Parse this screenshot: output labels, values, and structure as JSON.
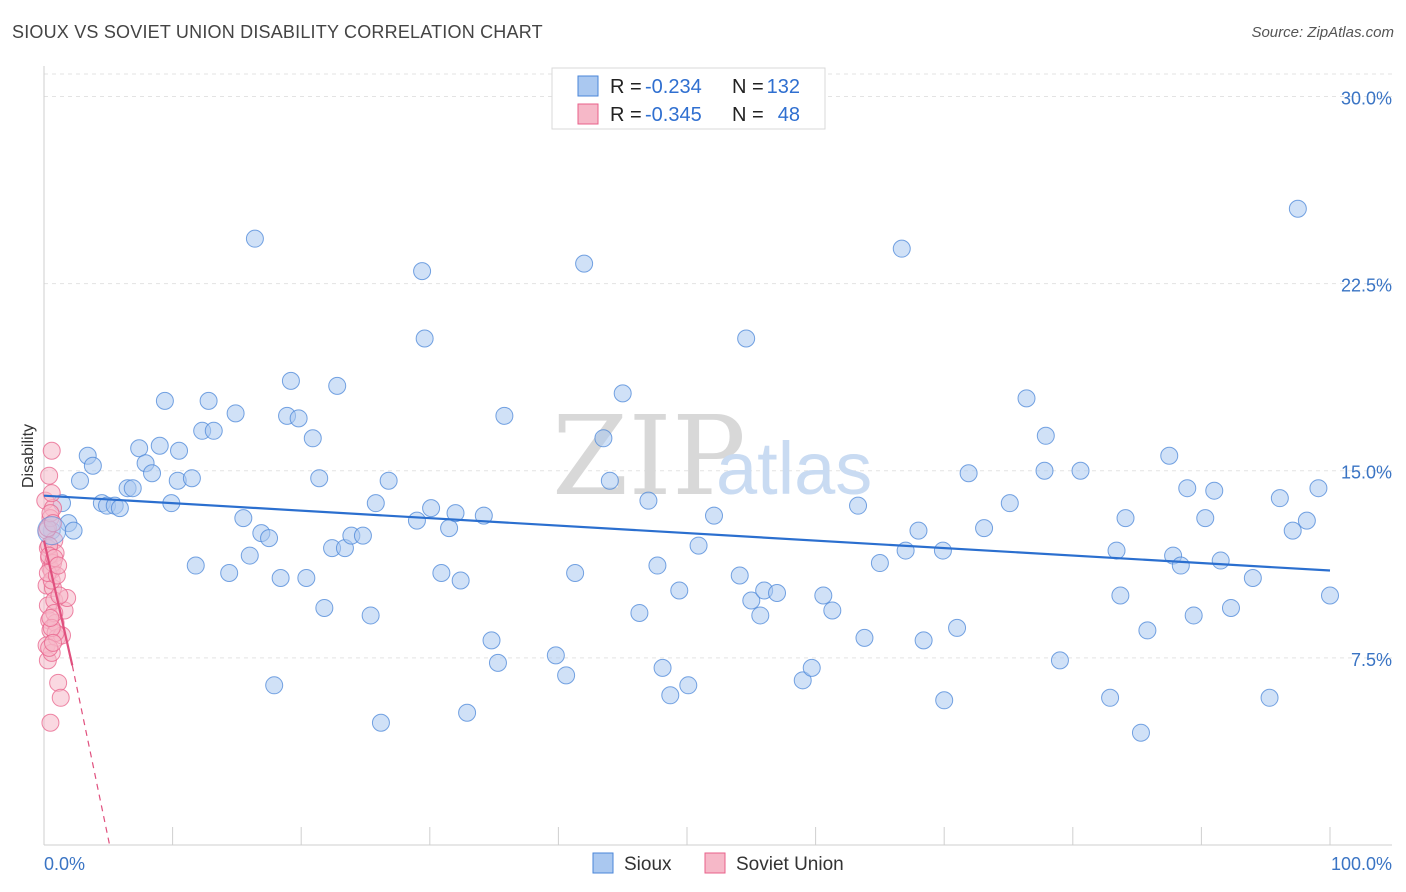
{
  "header": {
    "title": "SIOUX VS SOVIET UNION DISABILITY CORRELATION CHART",
    "source": "Source: ZipAtlas.com"
  },
  "watermark": {
    "zip": "ZIP",
    "atlas": "atlas"
  },
  "legend_top": {
    "r_label": "R =",
    "n_label": "N =",
    "rows": [
      {
        "r": "-0.234",
        "n": "132",
        "color": "#aac8f0"
      },
      {
        "r": "-0.345",
        "n": "48",
        "color": "#f6b8c8"
      }
    ]
  },
  "legend_bottom": [
    "Sioux",
    "Soviet Union"
  ],
  "chart_data": {
    "type": "scatter",
    "title": "SIOUX VS SOVIET UNION DISABILITY CORRELATION CHART",
    "xlabel": "",
    "ylabel": "Disability",
    "xlim": [
      0,
      100
    ],
    "ylim": [
      0,
      30.9
    ],
    "y_ticks": [
      7.5,
      15.0,
      22.5,
      30.0
    ],
    "y_tick_labels": [
      "7.5%",
      "15.0%",
      "22.5%",
      "30.0%"
    ],
    "x_tick_labels": [
      "0.0%",
      "100.0%"
    ],
    "grid": true,
    "legend_position": "top-center",
    "series": [
      {
        "name": "Sioux",
        "color": "#4a86d8",
        "fill": "#aac8f0",
        "trend": {
          "x": [
            0,
            100
          ],
          "y": [
            14.0,
            11.0
          ]
        },
        "points": [
          [
            0.6,
            12.6
          ],
          [
            1.4,
            13.7
          ],
          [
            1.9,
            12.9
          ],
          [
            2.3,
            12.6
          ],
          [
            2.8,
            14.6
          ],
          [
            3.4,
            15.6
          ],
          [
            3.8,
            15.2
          ],
          [
            4.5,
            13.7
          ],
          [
            4.9,
            13.6
          ],
          [
            5.5,
            13.6
          ],
          [
            5.9,
            13.5
          ],
          [
            6.5,
            14.3
          ],
          [
            6.9,
            14.3
          ],
          [
            7.4,
            15.9
          ],
          [
            7.9,
            15.3
          ],
          [
            8.4,
            14.9
          ],
          [
            9.0,
            16.0
          ],
          [
            9.4,
            17.8
          ],
          [
            9.9,
            13.7
          ],
          [
            10.4,
            14.6
          ],
          [
            10.5,
            15.8
          ],
          [
            11.5,
            14.7
          ],
          [
            11.8,
            11.2
          ],
          [
            12.3,
            16.6
          ],
          [
            12.8,
            17.8
          ],
          [
            13.2,
            16.6
          ],
          [
            14.4,
            10.9
          ],
          [
            14.9,
            17.3
          ],
          [
            15.5,
            13.1
          ],
          [
            16.0,
            11.6
          ],
          [
            16.4,
            24.3
          ],
          [
            16.9,
            12.5
          ],
          [
            17.5,
            12.3
          ],
          [
            17.9,
            6.4
          ],
          [
            18.4,
            10.7
          ],
          [
            18.9,
            17.2
          ],
          [
            19.2,
            18.6
          ],
          [
            19.8,
            17.1
          ],
          [
            20.4,
            10.7
          ],
          [
            20.9,
            16.3
          ],
          [
            21.4,
            14.7
          ],
          [
            21.8,
            9.5
          ],
          [
            22.4,
            11.9
          ],
          [
            22.8,
            18.4
          ],
          [
            23.4,
            11.9
          ],
          [
            23.9,
            12.4
          ],
          [
            24.8,
            12.4
          ],
          [
            25.4,
            9.2
          ],
          [
            25.8,
            13.7
          ],
          [
            26.2,
            4.9
          ],
          [
            26.8,
            14.6
          ],
          [
            29.0,
            13.0
          ],
          [
            29.4,
            23.0
          ],
          [
            29.6,
            20.3
          ],
          [
            30.1,
            13.5
          ],
          [
            30.9,
            10.9
          ],
          [
            31.5,
            12.7
          ],
          [
            32.0,
            13.3
          ],
          [
            32.4,
            10.6
          ],
          [
            32.9,
            5.3
          ],
          [
            34.2,
            13.2
          ],
          [
            34.8,
            8.2
          ],
          [
            35.3,
            7.3
          ],
          [
            35.8,
            17.2
          ],
          [
            39.8,
            7.6
          ],
          [
            40.6,
            6.8
          ],
          [
            41.3,
            10.9
          ],
          [
            42.0,
            23.3
          ],
          [
            43.5,
            16.3
          ],
          [
            44.0,
            14.6
          ],
          [
            45.0,
            18.1
          ],
          [
            46.3,
            9.3
          ],
          [
            47.0,
            13.8
          ],
          [
            47.7,
            11.2
          ],
          [
            48.1,
            7.1
          ],
          [
            48.7,
            6.0
          ],
          [
            49.4,
            10.2
          ],
          [
            50.1,
            6.4
          ],
          [
            50.9,
            12.0
          ],
          [
            52.1,
            13.2
          ],
          [
            54.1,
            10.8
          ],
          [
            54.6,
            20.3
          ],
          [
            55.0,
            9.8
          ],
          [
            55.7,
            9.2
          ],
          [
            56.0,
            10.2
          ],
          [
            57.0,
            10.1
          ],
          [
            59.0,
            6.6
          ],
          [
            59.7,
            7.1
          ],
          [
            60.6,
            10.0
          ],
          [
            61.3,
            9.4
          ],
          [
            63.3,
            13.6
          ],
          [
            63.8,
            8.3
          ],
          [
            65.0,
            11.3
          ],
          [
            66.7,
            23.9
          ],
          [
            67.0,
            11.8
          ],
          [
            68.0,
            12.6
          ],
          [
            68.4,
            8.2
          ],
          [
            69.9,
            11.8
          ],
          [
            70.0,
            5.8
          ],
          [
            71.0,
            8.7
          ],
          [
            71.9,
            14.9
          ],
          [
            73.1,
            12.7
          ],
          [
            75.1,
            13.7
          ],
          [
            76.4,
            17.9
          ],
          [
            77.8,
            15.0
          ],
          [
            77.9,
            16.4
          ],
          [
            79.0,
            7.4
          ],
          [
            80.6,
            15.0
          ],
          [
            82.9,
            5.9
          ],
          [
            83.4,
            11.8
          ],
          [
            83.7,
            10.0
          ],
          [
            84.1,
            13.1
          ],
          [
            85.3,
            4.5
          ],
          [
            85.8,
            8.6
          ],
          [
            87.5,
            15.6
          ],
          [
            87.8,
            11.6
          ],
          [
            88.4,
            11.2
          ],
          [
            88.9,
            14.3
          ],
          [
            89.4,
            9.2
          ],
          [
            90.3,
            13.1
          ],
          [
            91.0,
            14.2
          ],
          [
            91.5,
            11.4
          ],
          [
            92.3,
            9.5
          ],
          [
            94.0,
            10.7
          ],
          [
            95.3,
            5.9
          ],
          [
            96.1,
            13.9
          ],
          [
            97.1,
            12.6
          ],
          [
            98.2,
            13.0
          ],
          [
            99.1,
            14.3
          ],
          [
            100.0,
            10.0
          ],
          [
            97.5,
            25.5
          ]
        ]
      },
      {
        "name": "Soviet Union",
        "color": "#e8608a",
        "fill": "#f6b8c8",
        "trend": {
          "x": [
            0,
            2.2
          ],
          "y": [
            12.2,
            7.2
          ],
          "dashed_to": [
            5.1,
            0
          ]
        },
        "points": [
          [
            0.1,
            13.8
          ],
          [
            0.2,
            12.6
          ],
          [
            0.3,
            11.9
          ],
          [
            0.4,
            11.5
          ],
          [
            0.5,
            11.1
          ],
          [
            0.2,
            10.4
          ],
          [
            0.3,
            9.6
          ],
          [
            0.4,
            9.0
          ],
          [
            0.5,
            8.6
          ],
          [
            0.2,
            8.0
          ],
          [
            0.3,
            7.4
          ],
          [
            0.6,
            15.8
          ],
          [
            0.4,
            14.8
          ],
          [
            0.7,
            13.5
          ],
          [
            0.8,
            12.2
          ],
          [
            0.9,
            11.7
          ],
          [
            0.6,
            11.0
          ],
          [
            0.7,
            10.3
          ],
          [
            0.8,
            9.8
          ],
          [
            0.9,
            8.9
          ],
          [
            1.0,
            8.3
          ],
          [
            0.6,
            7.7
          ],
          [
            1.1,
            6.5
          ],
          [
            0.5,
            4.9
          ],
          [
            1.3,
            5.9
          ],
          [
            1.4,
            8.4
          ],
          [
            1.6,
            9.4
          ],
          [
            1.8,
            9.9
          ],
          [
            1.2,
            10.0
          ],
          [
            0.5,
            13.1
          ],
          [
            0.3,
            12.7
          ],
          [
            0.4,
            12.0
          ],
          [
            0.7,
            11.3
          ],
          [
            0.6,
            10.6
          ],
          [
            0.8,
            9.3
          ],
          [
            0.9,
            8.5
          ],
          [
            0.6,
            14.1
          ],
          [
            0.5,
            13.3
          ],
          [
            0.4,
            11.6
          ],
          [
            0.3,
            10.9
          ],
          [
            0.6,
            8.7
          ],
          [
            0.4,
            7.9
          ],
          [
            0.7,
            12.9
          ],
          [
            0.8,
            11.5
          ],
          [
            1.0,
            10.8
          ],
          [
            0.5,
            9.1
          ],
          [
            0.7,
            8.1
          ],
          [
            1.1,
            11.2
          ]
        ]
      }
    ]
  }
}
